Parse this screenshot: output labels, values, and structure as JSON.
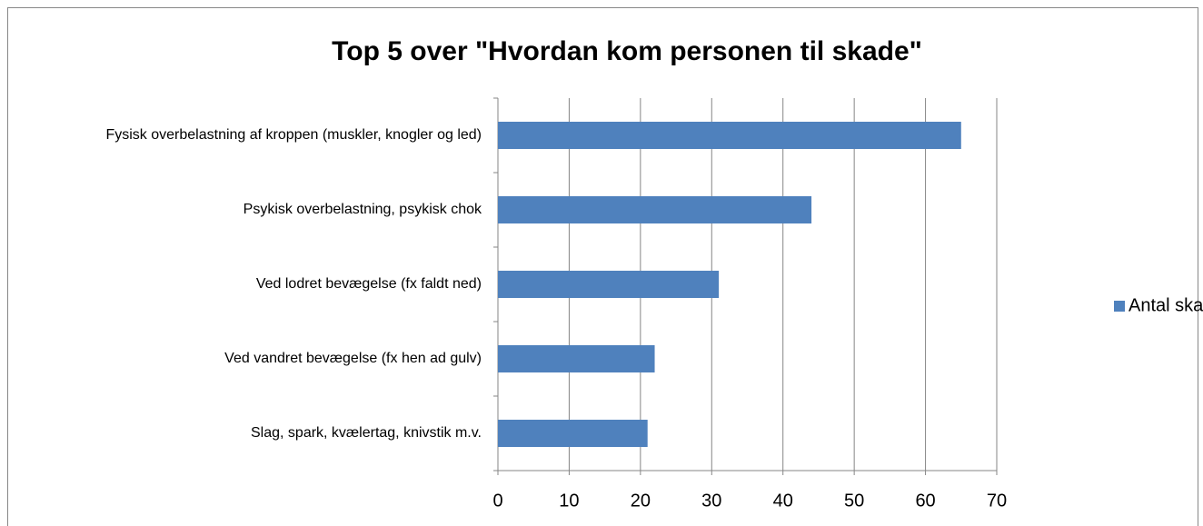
{
  "chart_data": {
    "type": "bar",
    "orientation": "horizontal",
    "title": "Top 5 over \"Hvordan kom personen til skade\"",
    "categories": [
      "Fysisk overbelastning af kroppen (muskler, knogler og led)",
      "Psykisk overbelastning, psykisk chok",
      "Ved lodret bevægelse (fx faldt ned)",
      "Ved vandret bevægelse (fx hen ad gulv)",
      "Slag, spark, kvælertag, knivstik m.v."
    ],
    "series": [
      {
        "name": "Antal skader",
        "color": "#4f81bd",
        "values": [
          65,
          44,
          31,
          22,
          21
        ]
      }
    ],
    "xlim": [
      0,
      70
    ],
    "xticks": [
      0,
      10,
      20,
      30,
      40,
      50,
      60,
      70
    ],
    "grid": true,
    "legend": "right"
  }
}
